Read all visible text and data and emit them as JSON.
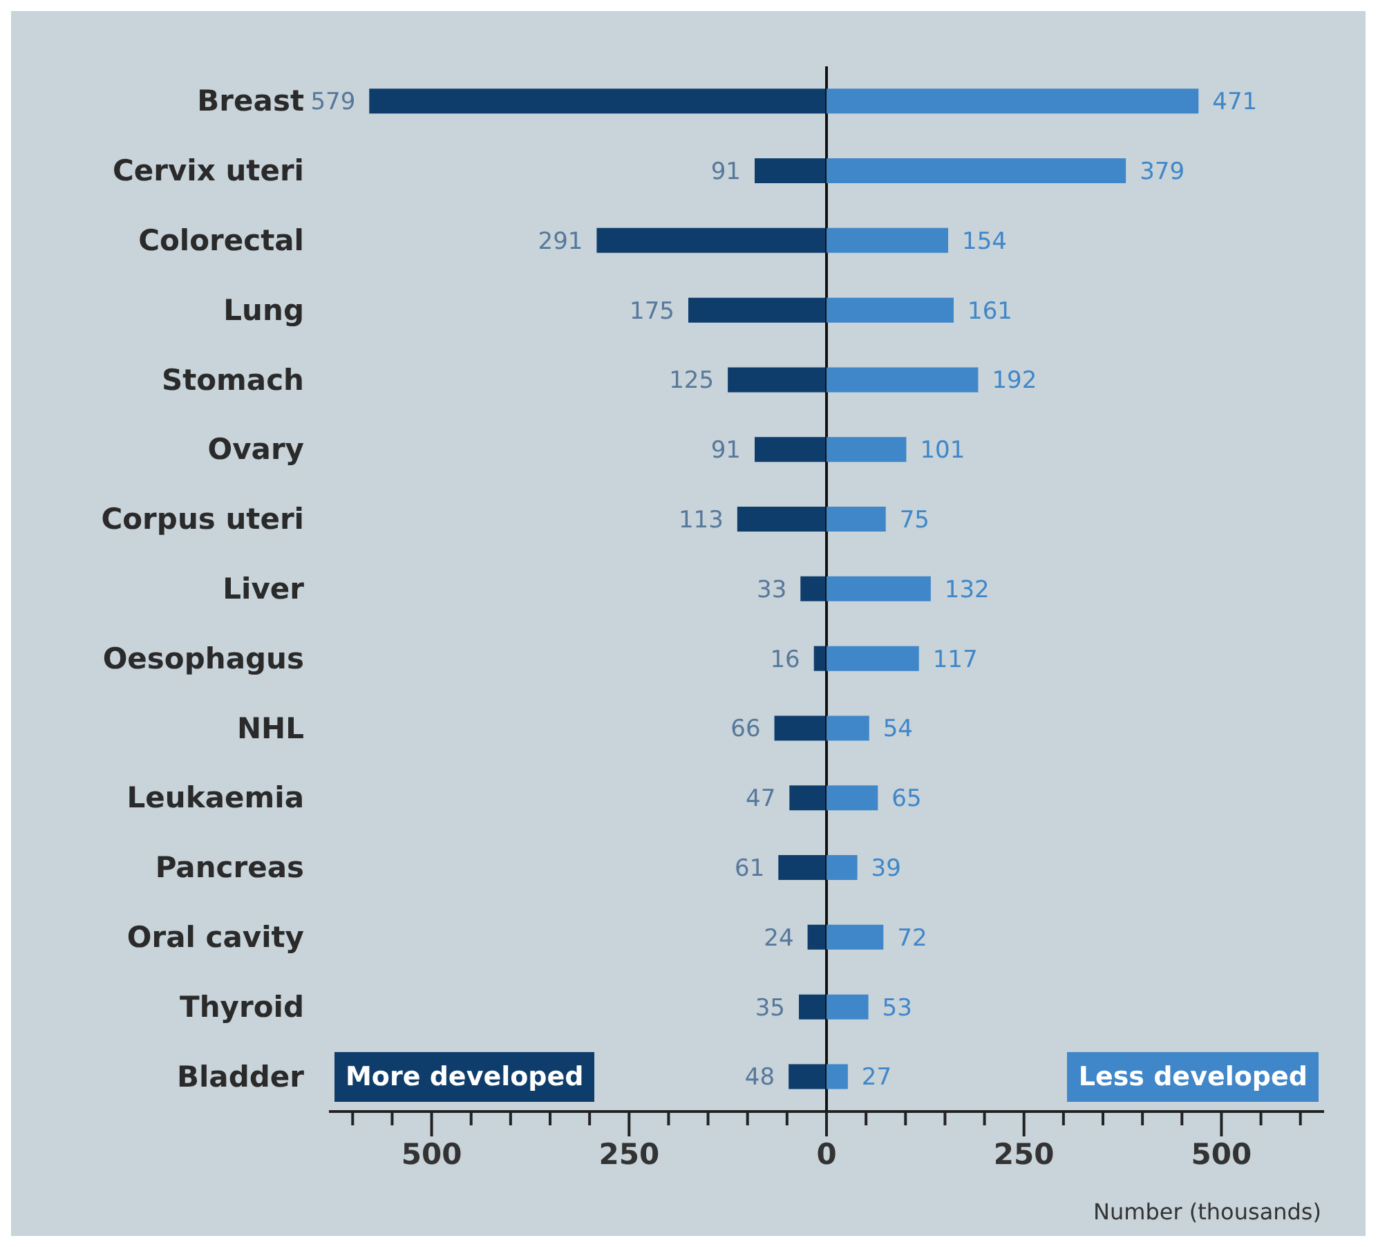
{
  "chart_data": [
    {
      "type": "bar",
      "orientation": "horizontal",
      "categories": [
        "Breast",
        "Cervix uteri",
        "Colorectal",
        "Lung",
        "Stomach",
        "Ovary",
        "Corpus uteri",
        "Liver",
        "Oesophagus",
        "NHL",
        "Leukaemia",
        "Pancreas",
        "Oral cavity",
        "Thyroid",
        "Bladder"
      ],
      "series": [
        {
          "name": "More developed",
          "color": "#0f3d6b",
          "values": [
            579,
            91,
            291,
            175,
            125,
            91,
            113,
            33,
            16,
            66,
            47,
            61,
            24,
            35,
            48
          ]
        }
      ],
      "data_labels": true,
      "xlim": [
        630,
        0
      ],
      "xticks": [
        {
          "value": 600,
          "label": null
        },
        {
          "value": 550,
          "label": null
        },
        500,
        {
          "value": 450,
          "label": null
        },
        {
          "value": 400,
          "label": null
        },
        {
          "value": 350,
          "label": null
        },
        {
          "value": 300,
          "label": null
        },
        250,
        {
          "value": 200,
          "label": null
        },
        {
          "value": 150,
          "label": null
        },
        {
          "value": 100,
          "label": null
        },
        {
          "value": 50,
          "label": null
        },
        0
      ],
      "ref_lines": [
        {
          "axis": "x",
          "value": 0,
          "color": "#111111"
        }
      ],
      "legend": "bottom left"
    },
    {
      "type": "bar",
      "orientation": "horizontal",
      "series": [
        {
          "name": "Less developed",
          "color": "#3f87c8",
          "values": [
            471,
            379,
            154,
            161,
            192,
            101,
            75,
            132,
            117,
            54,
            65,
            39,
            72,
            53,
            27
          ]
        }
      ],
      "data_labels": true,
      "xlabel": "Number (thousands)",
      "xlim": [
        0,
        630
      ],
      "xticks": [
        {
          "value": 50,
          "label": null
        },
        {
          "value": 100,
          "label": null
        },
        {
          "value": 150,
          "label": null
        },
        {
          "value": 200,
          "label": null
        },
        250,
        {
          "value": 300,
          "label": null
        },
        {
          "value": 350,
          "label": null
        },
        {
          "value": 400,
          "label": null
        },
        {
          "value": 450,
          "label": null
        },
        500,
        {
          "value": 550,
          "label": null
        },
        {
          "value": 600,
          "label": null
        }
      ],
      "tick_labels": "x",
      "legend": "bottom right"
    }
  ]
}
